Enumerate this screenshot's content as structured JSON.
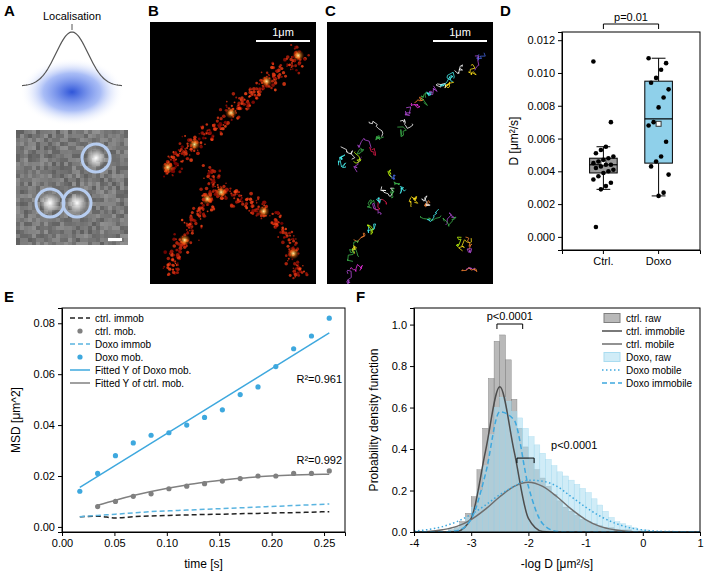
{
  "images": [
    {
      "panel": "A",
      "title": "Localisation"
    },
    {
      "panel": "B",
      "scale_bar": "1μm"
    },
    {
      "panel": "C",
      "scale_bar": "1μm"
    }
  ],
  "chart_data": [
    {
      "panel": "D",
      "type": "box",
      "y_label": "D [μm²/s]",
      "categories": [
        "Ctrl.",
        "Doxo"
      ],
      "colors": [
        "#9a9a9a",
        "#8fd0ea"
      ],
      "ylim": [
        -0.0008,
        0.0125
      ],
      "yticks": [
        {
          "value": 0,
          "label": "0.000"
        },
        {
          "value": 0.002,
          "label": "0.002"
        },
        {
          "value": 0.004,
          "label": "0.004"
        },
        {
          "value": 0.006,
          "label": "0.006"
        },
        {
          "value": 0.008,
          "label": "0.008"
        },
        {
          "value": 0.01,
          "label": "0.010"
        },
        {
          "value": 0.012,
          "label": "0.012"
        }
      ],
      "boxes": [
        {
          "whisker_low": 0.0029,
          "q1": 0.0039,
          "median": 0.0044,
          "q3": 0.0048,
          "whisker_high": 0.0055,
          "mean": 0.0045,
          "points": [
            0.0107,
            0.007,
            0.0055,
            0.0053,
            0.0051,
            0.0049,
            0.0048,
            0.0047,
            0.0046,
            0.0045,
            0.0044,
            0.0044,
            0.0043,
            0.0042,
            0.0041,
            0.004,
            0.0039,
            0.0037,
            0.0035,
            0.0033,
            0.0031,
            0.0029,
            0.0006
          ]
        },
        {
          "whisker_low": 0.0025,
          "q1": 0.0045,
          "median": 0.0072,
          "q3": 0.0095,
          "whisker_high": 0.0109,
          "mean": 0.0069,
          "points": [
            0.0109,
            0.0106,
            0.0102,
            0.0097,
            0.0094,
            0.009,
            0.0085,
            0.0079,
            0.007,
            0.0068,
            0.0058,
            0.0049,
            0.0046,
            0.0043,
            0.0038,
            0.0027,
            0.0025
          ]
        }
      ],
      "annotations": [
        "p=0.01"
      ]
    },
    {
      "panel": "E",
      "type": "line",
      "x_label": "time [s]",
      "y_label": "MSD [μm^2]",
      "xlim": [
        0,
        0.27
      ],
      "xticks": [
        {
          "value": 0,
          "label": "0.00"
        },
        {
          "value": 0.05,
          "label": "0.05"
        },
        {
          "value": 0.1,
          "label": "0.10"
        },
        {
          "value": 0.15,
          "label": "0.15"
        },
        {
          "value": 0.2,
          "label": "0.20"
        },
        {
          "value": 0.25,
          "label": "0.25"
        }
      ],
      "ylim": [
        -0.002,
        0.086
      ],
      "yticks": [
        {
          "value": 0,
          "label": "0.00"
        },
        {
          "value": 0.02,
          "label": "0.02"
        },
        {
          "value": 0.04,
          "label": "0.04"
        },
        {
          "value": 0.06,
          "label": "0.06"
        },
        {
          "value": 0.08,
          "label": "0.08"
        }
      ],
      "legend": "top-left",
      "series": [
        {
          "name": "ctrl. immob",
          "type": "line",
          "line_style": "dashed",
          "color": "#222222",
          "x": [
            0.017,
            0.034,
            0.051,
            0.068,
            0.085,
            0.102,
            0.119,
            0.136,
            0.153,
            0.17,
            0.187,
            0.204,
            0.221,
            0.238,
            0.255
          ],
          "values": [
            0.004,
            0.0042,
            0.0035,
            0.004,
            0.0043,
            0.0045,
            0.0047,
            0.0049,
            0.005,
            0.0052,
            0.0053,
            0.0055,
            0.0056,
            0.0058,
            0.006
          ]
        },
        {
          "name": "ctrl. mob.",
          "type": "scatter",
          "marker": "circle",
          "color": "#808080",
          "x": [
            0.034,
            0.051,
            0.068,
            0.085,
            0.102,
            0.119,
            0.136,
            0.153,
            0.17,
            0.187,
            0.204,
            0.221,
            0.238,
            0.255
          ],
          "values": [
            0.008,
            0.01,
            0.012,
            0.013,
            0.015,
            0.016,
            0.017,
            0.018,
            0.019,
            0.02,
            0.02,
            0.021,
            0.021,
            0.022
          ]
        },
        {
          "name": "Doxo immob",
          "type": "line",
          "line_style": "dashed",
          "color": "#5ab4e0",
          "x": [
            0.017,
            0.034,
            0.051,
            0.068,
            0.085,
            0.102,
            0.119,
            0.136,
            0.153,
            0.17,
            0.187,
            0.204,
            0.221,
            0.238,
            0.255
          ],
          "values": [
            0.004,
            0.0045,
            0.005,
            0.0055,
            0.006,
            0.0063,
            0.0066,
            0.0069,
            0.0072,
            0.0075,
            0.0078,
            0.0081,
            0.0084,
            0.0087,
            0.009
          ]
        },
        {
          "name": "Doxo mob.",
          "type": "scatter",
          "marker": "circle",
          "color": "#3ea8de",
          "x": [
            0.017,
            0.034,
            0.051,
            0.068,
            0.085,
            0.102,
            0.119,
            0.136,
            0.153,
            0.17,
            0.187,
            0.204,
            0.221,
            0.238,
            0.255
          ],
          "values": [
            0.014,
            0.021,
            0.028,
            0.033,
            0.036,
            0.037,
            0.04,
            0.043,
            0.046,
            0.052,
            0.055,
            0.063,
            0.07,
            0.075,
            0.082
          ]
        },
        {
          "name": "Fitted Y of Doxo mob.",
          "type": "line",
          "line_style": "solid",
          "color": "#3ea8de",
          "x": [
            0.017,
            0.255
          ],
          "values": [
            0.0155,
            0.0762
          ]
        },
        {
          "name": "Fitted Y of ctrl. mob.",
          "type": "line",
          "line_style": "solid",
          "color": "#808080",
          "x": [
            0.034,
            0.051,
            0.068,
            0.085,
            0.102,
            0.119,
            0.136,
            0.153,
            0.17,
            0.187,
            0.204,
            0.221,
            0.238,
            0.255
          ],
          "values": [
            0.0085,
            0.0105,
            0.0123,
            0.0139,
            0.0153,
            0.0165,
            0.0175,
            0.0184,
            0.0191,
            0.0197,
            0.0201,
            0.0204,
            0.0206,
            0.0207
          ]
        }
      ],
      "annotations": [
        "R²=0.961",
        "R²=0.992"
      ]
    },
    {
      "panel": "F",
      "type": "histogram",
      "x_label": "-log D [μm²/s]",
      "y_label": "Probability density function",
      "xlim": [
        -4,
        1
      ],
      "xticks": [
        -4,
        -3,
        -2,
        -1,
        0,
        1
      ],
      "ylim": [
        0,
        1.08
      ],
      "yticks": [
        {
          "value": 0,
          "label": "0.0"
        },
        {
          "value": 0.2,
          "label": "0.2"
        },
        {
          "value": 0.4,
          "label": "0.4"
        },
        {
          "value": 0.6,
          "label": "0.6"
        },
        {
          "value": 0.8,
          "label": "0.8"
        },
        {
          "value": 1,
          "label": "1.0"
        }
      ],
      "legend": "top-right",
      "bins": [
        -3.4,
        -3.3,
        -3.2,
        -3.1,
        -3,
        -2.9,
        -2.8,
        -2.7,
        -2.6,
        -2.5,
        -2.4,
        -2.3,
        -2.2,
        -2.1,
        -2,
        -1.9,
        -1.8,
        -1.7,
        -1.6,
        -1.5,
        -1.4,
        -1.3,
        -1.2,
        -1.1,
        -1,
        -0.9,
        -0.8,
        -0.7,
        -0.6,
        -0.5,
        -0.4,
        -0.3,
        -0.2,
        -0.1,
        0,
        0.1,
        0.2
      ],
      "x": [
        -4,
        -3.75,
        -3.5,
        -3.25,
        -3,
        -2.75,
        -2.5,
        -2.25,
        -2,
        -1.75,
        -1.5,
        -1.25,
        -1,
        -0.75,
        -0.5,
        -0.25,
        0,
        0.25,
        0.5,
        0.75,
        1
      ],
      "series": [
        {
          "name": "ctrl. raw",
          "type": "histogram",
          "color": "#7f7f7f",
          "values": [
            0.01,
            0.02,
            0.05,
            0.09,
            0.17,
            0.3,
            0.5,
            0.74,
            0.92,
            0.95,
            0.83,
            0.64,
            0.5,
            0.41,
            0.35,
            0.3,
            0.26,
            0.22,
            0.18,
            0.15,
            0.12,
            0.1,
            0.08,
            0.06,
            0.05,
            0.04,
            0.03,
            0.02,
            0.02,
            0.01,
            0.01,
            0.01,
            0,
            0,
            0,
            0
          ]
        },
        {
          "name": "ctrl. immobile",
          "type": "line",
          "line_style": "solid",
          "color": "#4d4d4d",
          "values": [
            0,
            0,
            0,
            0.003,
            0.066,
            0.39,
            0.7,
            0.39,
            0.066,
            0.003,
            0,
            0,
            0,
            0,
            0,
            0,
            0,
            0,
            0,
            0,
            0
          ]
        },
        {
          "name": "ctrl. mobile",
          "type": "line",
          "line_style": "solid",
          "color": "#6e6e6e",
          "values": [
            0.001,
            0.003,
            0.011,
            0.027,
            0.06,
            0.11,
            0.17,
            0.22,
            0.24,
            0.22,
            0.17,
            0.11,
            0.06,
            0.027,
            0.011,
            0.003,
            0.001,
            0,
            0,
            0,
            0
          ]
        },
        {
          "name": "Doxo, raw",
          "type": "histogram",
          "color": "#a9dcf0",
          "values": [
            0.01,
            0.02,
            0.04,
            0.07,
            0.12,
            0.2,
            0.32,
            0.47,
            0.6,
            0.65,
            0.63,
            0.58,
            0.55,
            0.5,
            0.46,
            0.42,
            0.38,
            0.35,
            0.32,
            0.29,
            0.27,
            0.25,
            0.23,
            0.21,
            0.19,
            0.16,
            0.13,
            0.1,
            0.07,
            0.05,
            0.04,
            0.03,
            0.02,
            0.01,
            0.01,
            0
          ]
        },
        {
          "name": "Doxo mobile",
          "type": "line",
          "line_style": "dotted",
          "color": "#3ea8de",
          "values": [
            0.005,
            0.012,
            0.026,
            0.05,
            0.085,
            0.13,
            0.18,
            0.22,
            0.25,
            0.245,
            0.22,
            0.17,
            0.12,
            0.077,
            0.044,
            0.022,
            0.01,
            0.004,
            0.002,
            0.001,
            0
          ]
        },
        {
          "name": "Doxo immobile",
          "type": "line",
          "line_style": "dashed",
          "color": "#3ea8de",
          "values": [
            0,
            0,
            0,
            0.006,
            0.062,
            0.28,
            0.58,
            0.54,
            0.22,
            0.04,
            0.003,
            0,
            0,
            0,
            0,
            0,
            0,
            0,
            0,
            0,
            0
          ]
        }
      ],
      "annotations": [
        "p<0.0001",
        "p<0.0001"
      ]
    }
  ]
}
